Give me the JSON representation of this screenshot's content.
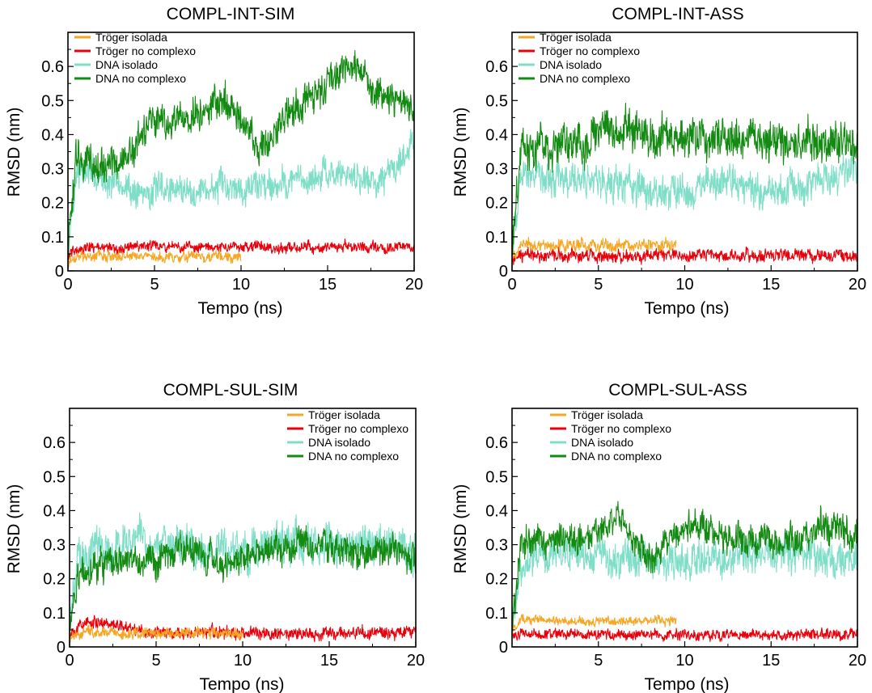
{
  "figure": {
    "series_colors": {
      "Tröger isolada": "#F5A623",
      "Tröger no complexo": "#E8000B",
      "DNA isolado": "#7FDEC8",
      "DNA no complexo": "#138A12"
    },
    "panels": [
      {
        "title": "COMPL-INT-SIM",
        "xlabel": "Tempo (ns)",
        "ylabel": "RMSD (nm)",
        "xticks": [
          "0",
          "5",
          "10",
          "15",
          "20"
        ],
        "yticks": [
          "0",
          "0.1",
          "0.2",
          "0.3",
          "0.4",
          "0.5",
          "0.6"
        ],
        "legend": [
          "Tröger isolada",
          "Tröger no complexo",
          "DNA isolado",
          "DNA no complexo"
        ]
      },
      {
        "title": "COMPL-INT-ASS",
        "xlabel": "Tempo (ns)",
        "ylabel": "RMSD (nm)",
        "xticks": [
          "0",
          "5",
          "10",
          "15",
          "20"
        ],
        "yticks": [
          "0",
          "0.1",
          "0.2",
          "0.3",
          "0.4",
          "0.5",
          "0.6"
        ],
        "legend": [
          "Tröger isolada",
          "Tröger no complexo",
          "DNA isolado",
          "DNA no complexo"
        ]
      },
      {
        "title": "COMPL-SUL-SIM",
        "xlabel": "Tempo (ns)",
        "ylabel": "RMSD (nm)",
        "xticks": [
          "0",
          "5",
          "10",
          "15",
          "20"
        ],
        "yticks": [
          "0",
          "0.1",
          "0.2",
          "0.3",
          "0.4",
          "0.5",
          "0.6"
        ],
        "legend": [
          "Tröger isolada",
          "Tröger no complexo",
          "DNA isolado",
          "DNA no complexo"
        ]
      },
      {
        "title": "COMPL-SUL-ASS",
        "xlabel": "Tempo (ns)",
        "ylabel": "RMSD (nm)",
        "xticks": [
          "5",
          "10",
          "15",
          "20"
        ],
        "yticks": [
          "0",
          "0.1",
          "0.2",
          "0.3",
          "0.4",
          "0.5",
          "0.6"
        ],
        "legend": [
          "Tröger isolada",
          "Tröger no complexo",
          "DNA isolado",
          "DNA no complexo"
        ]
      }
    ]
  },
  "chart_data": [
    {
      "type": "line",
      "title": "COMPL-INT-SIM",
      "xlabel": "Tempo (ns)",
      "ylabel": "RMSD (nm)",
      "xlim": [
        0,
        20
      ],
      "ylim": [
        0,
        0.7
      ],
      "legend_position": "top-left",
      "series": [
        {
          "name": "Tröger isolada",
          "noise": 0.012,
          "x": [
            0,
            0.5,
            2,
            4,
            6,
            8,
            10
          ],
          "y": [
            0.03,
            0.04,
            0.04,
            0.04,
            0.04,
            0.04,
            0.04
          ]
        },
        {
          "name": "Tröger no complexo",
          "noise": 0.012,
          "x": [
            0,
            0.5,
            5,
            10,
            15,
            20
          ],
          "y": [
            0.04,
            0.07,
            0.07,
            0.07,
            0.07,
            0.07
          ]
        },
        {
          "name": "DNA isolado",
          "noise": 0.035,
          "x": [
            0,
            0.5,
            2,
            4,
            6,
            8,
            10,
            12,
            14,
            16,
            18,
            20
          ],
          "y": [
            0.05,
            0.3,
            0.27,
            0.23,
            0.24,
            0.24,
            0.25,
            0.26,
            0.27,
            0.29,
            0.26,
            0.38
          ]
        },
        {
          "name": "DNA no complexo",
          "noise": 0.04,
          "x": [
            0,
            0.5,
            2,
            3,
            5,
            7,
            9,
            10,
            11,
            13,
            15,
            16.5,
            18,
            20
          ],
          "y": [
            0.05,
            0.33,
            0.3,
            0.32,
            0.43,
            0.45,
            0.5,
            0.46,
            0.35,
            0.47,
            0.55,
            0.6,
            0.52,
            0.47
          ]
        }
      ]
    },
    {
      "type": "line",
      "title": "COMPL-INT-ASS",
      "xlabel": "Tempo (ns)",
      "ylabel": "RMSD (nm)",
      "xlim": [
        0,
        20
      ],
      "ylim": [
        0,
        0.7
      ],
      "legend_position": "top-left",
      "series": [
        {
          "name": "Tröger isolada",
          "noise": 0.014,
          "x": [
            0,
            0.5,
            3,
            6,
            9.5
          ],
          "y": [
            0.03,
            0.08,
            0.075,
            0.075,
            0.075
          ]
        },
        {
          "name": "Tröger no complexo",
          "noise": 0.014,
          "x": [
            0,
            0.5,
            5,
            10,
            15,
            20
          ],
          "y": [
            0.03,
            0.045,
            0.045,
            0.045,
            0.045,
            0.045
          ]
        },
        {
          "name": "DNA isolado",
          "noise": 0.04,
          "x": [
            0,
            0.5,
            3,
            5,
            8,
            10,
            12,
            15,
            18,
            20
          ],
          "y": [
            0.05,
            0.28,
            0.27,
            0.27,
            0.23,
            0.24,
            0.25,
            0.24,
            0.26,
            0.28
          ]
        },
        {
          "name": "DNA no complexo",
          "noise": 0.045,
          "x": [
            0,
            0.5,
            3,
            6,
            9,
            10,
            13,
            16,
            20
          ],
          "y": [
            0.05,
            0.36,
            0.36,
            0.42,
            0.4,
            0.4,
            0.38,
            0.38,
            0.37
          ]
        }
      ]
    },
    {
      "type": "line",
      "title": "COMPL-SUL-SIM",
      "xlabel": "Tempo (ns)",
      "ylabel": "RMSD (nm)",
      "xlim": [
        0,
        20
      ],
      "ylim": [
        0,
        0.7
      ],
      "legend_position": "top-right",
      "series": [
        {
          "name": "Tröger isolada",
          "noise": 0.012,
          "x": [
            0,
            0.5,
            3,
            6,
            10
          ],
          "y": [
            0.03,
            0.04,
            0.04,
            0.04,
            0.04
          ]
        },
        {
          "name": "Tröger no complexo",
          "noise": 0.014,
          "x": [
            0,
            0.5,
            2,
            5,
            10,
            15,
            20
          ],
          "y": [
            0.03,
            0.06,
            0.07,
            0.04,
            0.04,
            0.04,
            0.04
          ]
        },
        {
          "name": "DNA isolado",
          "noise": 0.045,
          "x": [
            0,
            0.5,
            3,
            6,
            9,
            12,
            15,
            18,
            20
          ],
          "y": [
            0.05,
            0.27,
            0.3,
            0.3,
            0.27,
            0.3,
            0.3,
            0.3,
            0.27
          ]
        },
        {
          "name": "DNA no complexo",
          "noise": 0.035,
          "x": [
            0,
            0.5,
            3,
            5,
            7,
            9,
            12,
            15,
            18,
            20
          ],
          "y": [
            0.05,
            0.22,
            0.25,
            0.24,
            0.3,
            0.23,
            0.3,
            0.29,
            0.28,
            0.27
          ]
        }
      ]
    },
    {
      "type": "line",
      "title": "COMPL-SUL-ASS",
      "xlabel": "Tempo (ns)",
      "ylabel": "RMSD (nm)",
      "xlim": [
        0,
        20
      ],
      "ylim": [
        0,
        0.7
      ],
      "legend_position": "top-right",
      "series": [
        {
          "name": "Tröger isolada",
          "noise": 0.01,
          "x": [
            0,
            0.5,
            3,
            6,
            9.5
          ],
          "y": [
            0.04,
            0.08,
            0.075,
            0.075,
            0.08
          ]
        },
        {
          "name": "Tröger no complexo",
          "noise": 0.012,
          "x": [
            0,
            0.5,
            5,
            10,
            15,
            20
          ],
          "y": [
            0.03,
            0.04,
            0.035,
            0.035,
            0.035,
            0.035
          ]
        },
        {
          "name": "DNA isolado",
          "noise": 0.04,
          "x": [
            0,
            0.5,
            3,
            6,
            9,
            12,
            15,
            18,
            20
          ],
          "y": [
            0.05,
            0.24,
            0.28,
            0.26,
            0.25,
            0.26,
            0.27,
            0.27,
            0.25
          ]
        },
        {
          "name": "DNA no complexo",
          "noise": 0.035,
          "x": [
            0,
            0.5,
            2,
            4,
            6,
            8,
            10,
            13,
            16,
            18,
            20
          ],
          "y": [
            0.05,
            0.3,
            0.32,
            0.3,
            0.38,
            0.26,
            0.36,
            0.32,
            0.3,
            0.36,
            0.32
          ]
        }
      ]
    }
  ]
}
